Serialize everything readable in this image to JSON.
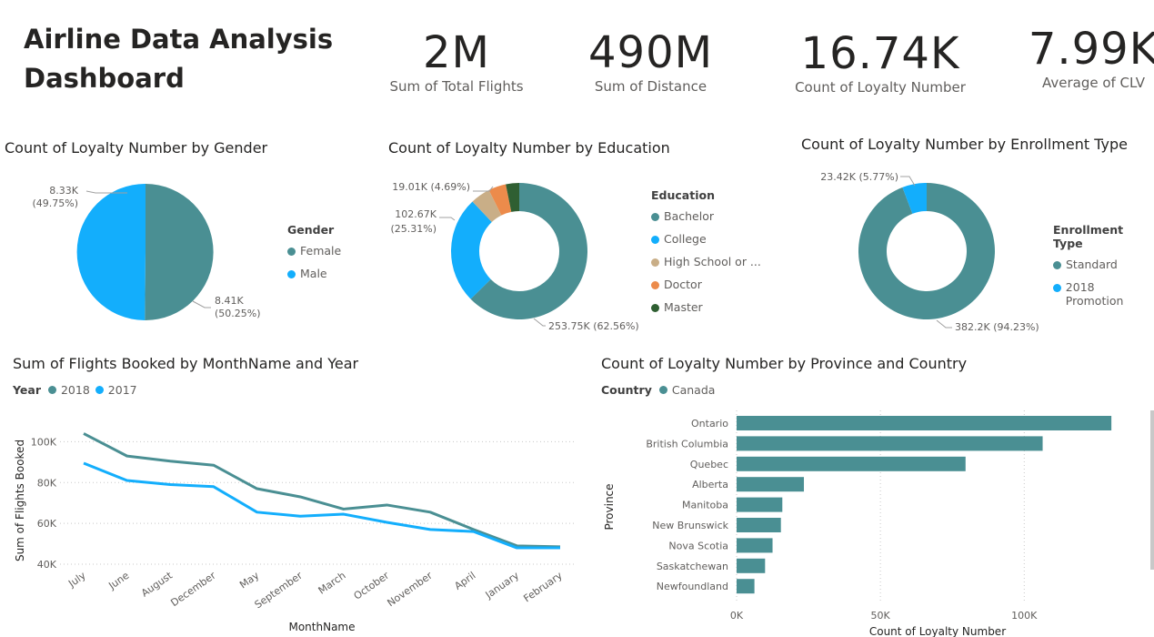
{
  "dashboard": {
    "title_line1": "Airline Data Analysis",
    "title_line2": "Dashboard"
  },
  "kpis": [
    {
      "value": "2M",
      "label": "Sum of Total Flights"
    },
    {
      "value": "490M",
      "label": "Sum of Distance"
    },
    {
      "value": "16.74K",
      "label": "Count of Loyalty Number"
    },
    {
      "value": "7.99K",
      "label": "Average of CLV"
    }
  ],
  "colors": {
    "teal": "#4a8f93",
    "blue": "#13aefc",
    "tan": "#c9ae87",
    "orange": "#ec8b4b",
    "green": "#2f5f32"
  },
  "chart_data": [
    {
      "type": "pie",
      "title": "Count of Loyalty Number by Gender",
      "legend_title": "Gender",
      "categories": [
        "Female",
        "Male"
      ],
      "values": [
        8410,
        8330
      ],
      "labels": [
        {
          "line1": "8.41K",
          "line2": "(50.25%)"
        },
        {
          "line1": "8.33K",
          "line2": "(49.75%)"
        }
      ]
    },
    {
      "type": "pie",
      "donut": true,
      "title": "Count of Loyalty Number by Education",
      "legend_title": "Education",
      "categories": [
        "Bachelor",
        "College",
        "High School or ...",
        "Doctor",
        "Master"
      ],
      "values": [
        253750,
        102670,
        19010,
        16880,
        12880
      ],
      "labels": [
        {
          "line1": "253.75K (62.56%)"
        },
        {
          "line1": "102.67K",
          "line2": "(25.31%)"
        },
        {
          "line1": "19.01K (4.69%)"
        }
      ]
    },
    {
      "type": "pie",
      "donut": true,
      "title": "Count of Loyalty Number by Enrollment Type",
      "legend_title": "Enrollment Type",
      "categories": [
        "Standard",
        "2018 Promotion"
      ],
      "values": [
        382200,
        23420
      ],
      "labels": [
        {
          "line1": "382.2K (94.23%)"
        },
        {
          "line1": "23.42K (5.77%)"
        }
      ]
    },
    {
      "type": "line",
      "title": "Sum of Flights Booked by MonthName and Year",
      "legend_title": "Year",
      "xlabel": "MonthName",
      "ylabel": "Sum of Flights Booked",
      "categories": [
        "July",
        "June",
        "August",
        "December",
        "May",
        "September",
        "March",
        "October",
        "November",
        "April",
        "January",
        "February"
      ],
      "series": [
        {
          "name": "2018",
          "values": [
            104000,
            93000,
            90500,
            88500,
            77000,
            73000,
            67000,
            69000,
            65500,
            57000,
            49000,
            48500
          ]
        },
        {
          "name": "2017",
          "values": [
            89500,
            81000,
            79000,
            78000,
            65500,
            63500,
            64500,
            60500,
            57000,
            56000,
            48000,
            48000
          ]
        }
      ],
      "ylim": [
        40000,
        110000
      ],
      "yticks": [
        40000,
        60000,
        80000,
        100000
      ],
      "ytick_labels": [
        "40K",
        "60K",
        "80K",
        "100K"
      ]
    },
    {
      "type": "bar",
      "orientation": "horizontal",
      "title": "Count of Loyalty Number by Province and Country",
      "legend_title": "Country",
      "legend": [
        "Canada"
      ],
      "ylabel": "Province",
      "xlabel": "Count of Loyalty Number",
      "categories": [
        "Ontario",
        "British Columbia",
        "Quebec",
        "Alberta",
        "Manitoba",
        "New Brunswick",
        "Nova Scotia",
        "Saskatchewan",
        "Newfoundland"
      ],
      "values": [
        130300,
        106400,
        79600,
        23400,
        15900,
        15400,
        12500,
        9900,
        6200
      ],
      "xlim": [
        0,
        135000
      ],
      "xticks": [
        0,
        50000,
        100000
      ],
      "xtick_labels": [
        "0K",
        "50K",
        "100K"
      ]
    }
  ]
}
